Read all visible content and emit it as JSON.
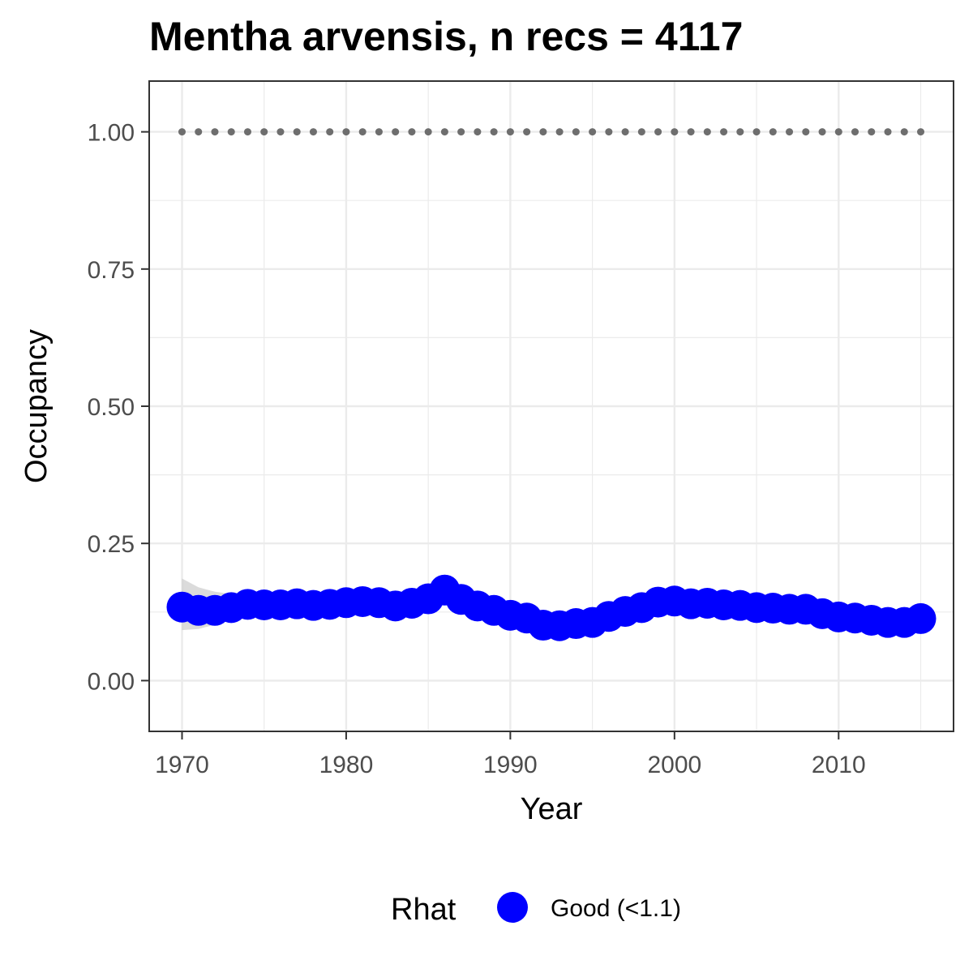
{
  "chart_data": {
    "type": "scatter",
    "title": "Mentha arvensis, n recs = 4117",
    "xlabel": "Year",
    "ylabel": "Occupancy",
    "xlim": [
      1968,
      2017
    ],
    "ylim": [
      -0.0925,
      1.0925
    ],
    "x_ticks": [
      1970,
      1980,
      1990,
      2000,
      2010
    ],
    "x_tick_labels": [
      "1970",
      "1980",
      "1990",
      "2000",
      "2010"
    ],
    "y_ticks": [
      0,
      0.25,
      0.5,
      0.75,
      1
    ],
    "y_tick_labels": [
      "0.00",
      "0.25",
      "0.50",
      "0.75",
      "1.00"
    ],
    "grid": true,
    "legend": {
      "title": "Rhat",
      "position": "bottom",
      "entries": [
        {
          "label": "Good (<1.1)",
          "color": "#0000ff"
        }
      ]
    },
    "colors": {
      "points": "#0000ff",
      "ribbon": "#bebebe",
      "reference_points": "#6e6e6e",
      "grid": "#ebebeb",
      "panel_border": "#333333"
    },
    "series": [
      {
        "name": "Good (<1.1)",
        "x": [
          1970,
          1971,
          1972,
          1973,
          1974,
          1975,
          1976,
          1977,
          1978,
          1979,
          1980,
          1981,
          1982,
          1983,
          1984,
          1985,
          1986,
          1987,
          1988,
          1989,
          1990,
          1991,
          1992,
          1993,
          1994,
          1995,
          1996,
          1997,
          1998,
          1999,
          2000,
          2001,
          2002,
          2003,
          2004,
          2005,
          2006,
          2007,
          2008,
          2009,
          2010,
          2011,
          2012,
          2013,
          2014,
          2015
        ],
        "y": [
          0.134,
          0.128,
          0.128,
          0.133,
          0.139,
          0.138,
          0.138,
          0.14,
          0.137,
          0.139,
          0.142,
          0.144,
          0.142,
          0.136,
          0.141,
          0.149,
          0.165,
          0.148,
          0.136,
          0.128,
          0.119,
          0.114,
          0.101,
          0.1,
          0.104,
          0.106,
          0.117,
          0.126,
          0.133,
          0.143,
          0.145,
          0.14,
          0.141,
          0.138,
          0.137,
          0.133,
          0.132,
          0.13,
          0.13,
          0.122,
          0.116,
          0.114,
          0.11,
          0.106,
          0.106,
          0.113
        ],
        "lower": [
          0.092,
          0.094,
          0.102,
          0.112,
          0.118,
          0.12,
          0.121,
          0.122,
          0.122,
          0.123,
          0.125,
          0.126,
          0.126,
          0.124,
          0.126,
          0.135,
          0.15,
          0.14,
          0.125,
          0.116,
          0.108,
          0.102,
          0.09,
          0.089,
          0.093,
          0.095,
          0.105,
          0.114,
          0.122,
          0.13,
          0.133,
          0.13,
          0.13,
          0.127,
          0.126,
          0.122,
          0.121,
          0.119,
          0.118,
          0.11,
          0.104,
          0.102,
          0.098,
          0.095,
          0.095,
          0.1
        ],
        "upper": [
          0.186,
          0.17,
          0.162,
          0.158,
          0.16,
          0.158,
          0.157,
          0.158,
          0.155,
          0.156,
          0.158,
          0.16,
          0.162,
          0.155,
          0.157,
          0.164,
          0.18,
          0.158,
          0.148,
          0.14,
          0.13,
          0.126,
          0.112,
          0.112,
          0.116,
          0.118,
          0.129,
          0.138,
          0.146,
          0.157,
          0.158,
          0.152,
          0.153,
          0.15,
          0.149,
          0.146,
          0.145,
          0.143,
          0.143,
          0.134,
          0.128,
          0.126,
          0.122,
          0.118,
          0.118,
          0.126
        ]
      },
      {
        "x": [
          1970,
          1971,
          1972,
          1973,
          1974,
          1975,
          1976,
          1977,
          1978,
          1979,
          1980,
          1981,
          1982,
          1983,
          1984,
          1985,
          1986,
          1987,
          1988,
          1989,
          1990,
          1991,
          1992,
          1993,
          1994,
          1995,
          1996,
          1997,
          1998,
          1999,
          2000,
          2001,
          2002,
          2003,
          2004,
          2005,
          2006,
          2007,
          2008,
          2009,
          2010,
          2011,
          2012,
          2013,
          2014,
          2015
        ],
        "y": [
          1,
          1,
          1,
          1,
          1,
          1,
          1,
          1,
          1,
          1,
          1,
          1,
          1,
          1,
          1,
          1,
          1,
          1,
          1,
          1,
          1,
          1,
          1,
          1,
          1,
          1,
          1,
          1,
          1,
          1,
          1,
          1,
          1,
          1,
          1,
          1,
          1,
          1,
          1,
          1,
          1,
          1,
          1,
          1,
          1,
          1
        ]
      }
    ]
  }
}
